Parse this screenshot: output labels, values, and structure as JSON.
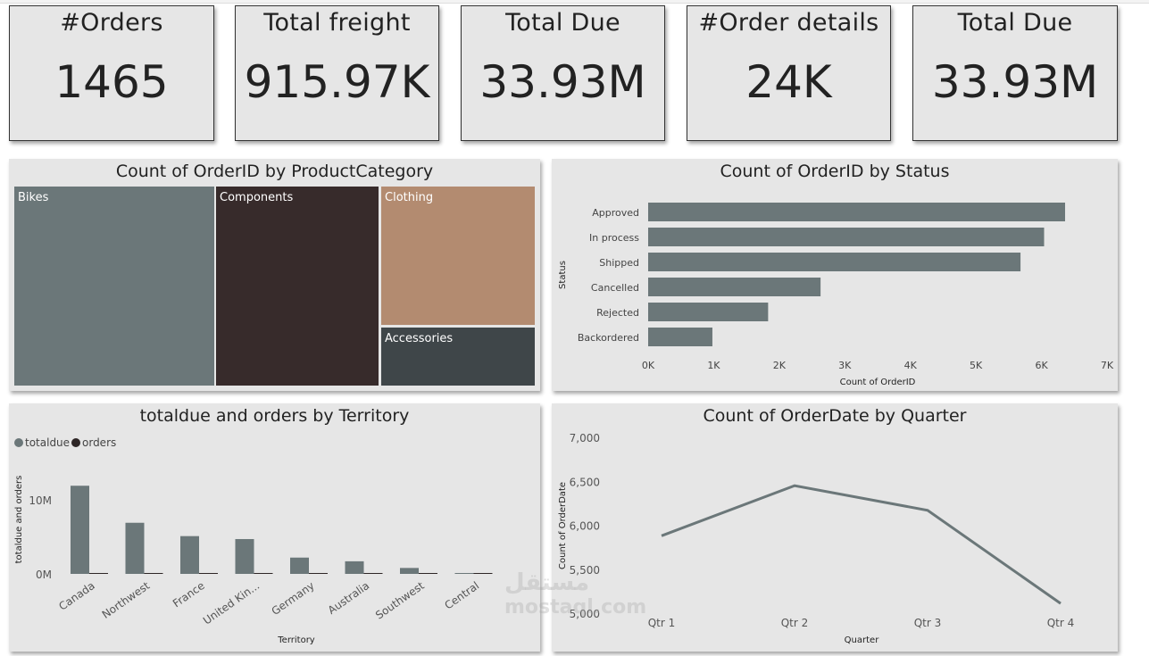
{
  "kpis": [
    {
      "title": "#Orders",
      "value": "1465"
    },
    {
      "title": "Total freight",
      "value": "915.97K"
    },
    {
      "title": "Total Due",
      "value": "33.93M"
    },
    {
      "title": "#Order details",
      "value": "24K"
    },
    {
      "title": "Total Due",
      "value": "33.93M"
    }
  ],
  "watermark": "mostaql.com",
  "chart_data": [
    {
      "type": "treemap",
      "title": "Count of OrderID by ProductCategory",
      "categories": [
        "Bikes",
        "Components",
        "Clothing",
        "Accessories"
      ],
      "colors": [
        "#6b7779",
        "#372b2b",
        "#b38b70",
        "#3f4649"
      ]
    },
    {
      "type": "bar",
      "orientation": "horizontal",
      "title": "Count of OrderID by Status",
      "categories": [
        "Approved",
        "In process",
        "Shipped",
        "Cancelled",
        "Rejected",
        "Backordered"
      ],
      "values": [
        6360,
        6040,
        5680,
        2630,
        1830,
        980
      ],
      "xlabel": "Count of OrderID",
      "ylabel": "Status",
      "xticks": [
        "0K",
        "1K",
        "2K",
        "3K",
        "4K",
        "5K",
        "6K",
        "7K"
      ],
      "xlim": [
        0,
        7000
      ],
      "color": "#6b7779"
    },
    {
      "type": "bar",
      "title": "totaldue and orders by Territory",
      "categories": [
        "Canada",
        "Northwest",
        "France",
        "United Kin...",
        "Germany",
        "Australia",
        "Southwest",
        "Central"
      ],
      "series": [
        {
          "name": "totaldue",
          "values": [
            11900000,
            6900000,
            5100000,
            4700000,
            2200000,
            1700000,
            800000,
            50000
          ],
          "color": "#6b7779"
        },
        {
          "name": "orders",
          "values": [
            250,
            230,
            180,
            170,
            120,
            100,
            90,
            20
          ],
          "color": "#2e2626"
        }
      ],
      "xlabel": "Territory",
      "ylabel": "totaldue and orders",
      "yticks": [
        "0M",
        "10M"
      ],
      "ylim": [
        0,
        14000000
      ],
      "legend": "top-left"
    },
    {
      "type": "line",
      "title": "Count of OrderDate by Quarter",
      "categories": [
        "Qtr 1",
        "Qtr 2",
        "Qtr 3",
        "Qtr 4"
      ],
      "values": [
        5880,
        6450,
        6170,
        5110
      ],
      "xlabel": "Quarter",
      "ylabel": "Count of OrderDate",
      "yticks": [
        "5,000",
        "5,500",
        "6,000",
        "6,500",
        "7,000"
      ],
      "ylim": [
        5000,
        7000
      ],
      "color": "#6b7779"
    }
  ]
}
